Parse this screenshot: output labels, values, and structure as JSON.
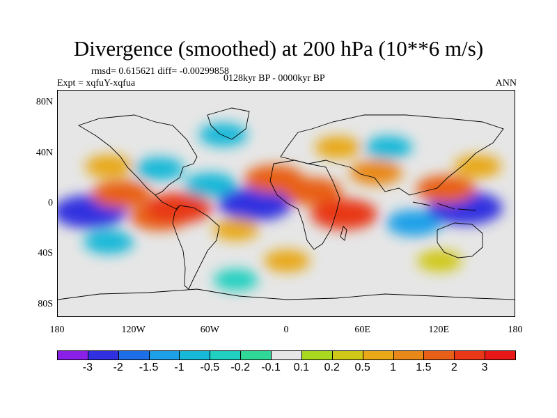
{
  "title": "Divergence (smoothed) at 200 hPa (10**6 m/s)",
  "stats_text": "rmsd= 0.615621 diff= -0.00299858",
  "experiment_text": "Expt = xqfuY-xqfua",
  "period_text": "0128kyr BP - 0000kyr BP",
  "season_text": "ANN",
  "axes": {
    "lat_labels": [
      "80N",
      "40N",
      "0",
      "40S",
      "80S"
    ],
    "lat_values": [
      80,
      40,
      0,
      -40,
      -80
    ],
    "lon_labels": [
      "180",
      "120W",
      "60W",
      "0",
      "60E",
      "120E",
      "180"
    ],
    "lon_values": [
      -180,
      -120,
      -60,
      0,
      60,
      120,
      180
    ]
  },
  "colorbar": {
    "labels": [
      "-3",
      "-2",
      "-1.5",
      "-1",
      "-0.5",
      "-0.2",
      "-0.1",
      "0.1",
      "0.2",
      "0.5",
      "1",
      "1.5",
      "2",
      "3"
    ],
    "colors": [
      "#8a20e8",
      "#3030e0",
      "#1e6ee8",
      "#1ea0e8",
      "#18b8d8",
      "#20d0c0",
      "#30d898",
      "#e6e6e6",
      "#a8d820",
      "#d0c818",
      "#e8a818",
      "#e88818",
      "#e86018",
      "#e83818",
      "#e81818"
    ]
  },
  "chart_data": {
    "type": "heatmap",
    "title": "Divergence (smoothed) at 200 hPa (10**6 m/s)",
    "variable": "divergence difference",
    "units": "10**6 m/s",
    "xlabel": "",
    "ylabel": "",
    "xlim": [
      -180,
      180
    ],
    "ylim": [
      -90,
      90
    ],
    "levels": [
      -3,
      -2,
      -1.5,
      -1,
      -0.5,
      -0.2,
      -0.1,
      0.1,
      0.2,
      0.5,
      1,
      1.5,
      2,
      3
    ],
    "features": [
      {
        "lon": -155,
        "lat": -6,
        "value": -2.5
      },
      {
        "lon": -130,
        "lat": 8,
        "value": 1.5
      },
      {
        "lon": -100,
        "lat": -10,
        "value": 1.5
      },
      {
        "lon": -85,
        "lat": -3,
        "value": 2.0
      },
      {
        "lon": -140,
        "lat": 30,
        "value": 0.6
      },
      {
        "lon": -140,
        "lat": -30,
        "value": -0.8
      },
      {
        "lon": -100,
        "lat": 28,
        "value": -0.7
      },
      {
        "lon": -60,
        "lat": 15,
        "value": -1.0
      },
      {
        "lon": -25,
        "lat": 0,
        "value": -2.5
      },
      {
        "lon": -10,
        "lat": 20,
        "value": 1.5
      },
      {
        "lon": -40,
        "lat": -20,
        "value": 0.5
      },
      {
        "lon": 20,
        "lat": 10,
        "value": 1.5
      },
      {
        "lon": 45,
        "lat": -8,
        "value": 2.0
      },
      {
        "lon": 70,
        "lat": 25,
        "value": 1.0
      },
      {
        "lon": 40,
        "lat": 45,
        "value": 0.5
      },
      {
        "lon": 100,
        "lat": -15,
        "value": -1.2
      },
      {
        "lon": 140,
        "lat": -3,
        "value": -2.6
      },
      {
        "lon": 125,
        "lat": 12,
        "value": 1.5
      },
      {
        "lon": 150,
        "lat": 30,
        "value": 0.6
      },
      {
        "lon": -50,
        "lat": 55,
        "value": -0.7
      },
      {
        "lon": 80,
        "lat": 45,
        "value": -0.6
      },
      {
        "lon": 0,
        "lat": -45,
        "value": 0.5
      },
      {
        "lon": 120,
        "lat": -45,
        "value": 0.4
      },
      {
        "lon": -40,
        "lat": -60,
        "value": -0.4
      }
    ]
  }
}
